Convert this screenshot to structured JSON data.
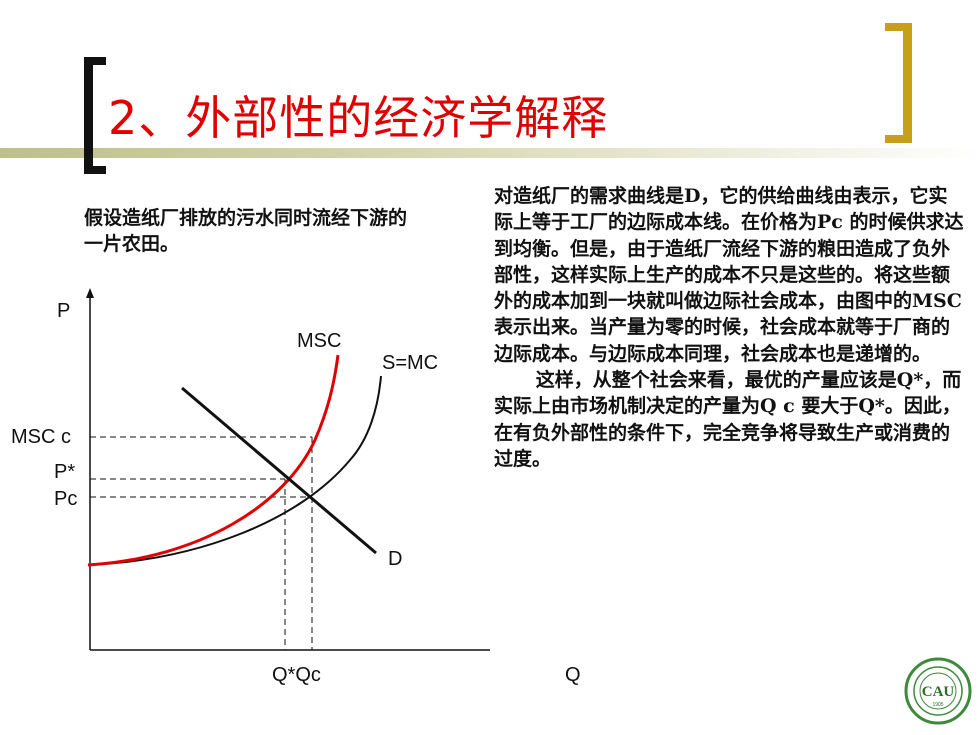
{
  "slide": {
    "title": "2、外部性的经济学解释",
    "assumption": "假设造纸厂排放的污水同时流经下游的一片农田。",
    "explanation": [
      "对造纸厂的需求曲线是D，它的供给曲线由表示，它实际上等于工厂的边际成本线。在价格为Pc 的时候供求达到均衡。但是，由于造纸厂流经下游的粮田造成了负外部性，这样实际上生产的成本不只是这些的。将这些额外的成本加到一块就叫做边际社会成本，由图中的MSC表示出来。当产量为零的时候，社会成本就等于厂商的边际成本。与边际成本同理，社会成本也是递增的。",
      "这样，从整个社会来看，最优的产量应该是Q*，而实际上由市场机制决定的产量为Q c 要大于Q*。因此，在有负外部性的条件下，完全竞争将导致生产或消费的过度。"
    ],
    "logo_text": "CAU",
    "logo_year": "1905"
  },
  "chart_data": {
    "type": "line",
    "title": "",
    "xlabel": "Q",
    "ylabel": "P",
    "series": [
      {
        "name": "MSC",
        "color": "#e00000"
      },
      {
        "name": "S=MC",
        "color": "#111111"
      },
      {
        "name": "D",
        "color": "#111111"
      }
    ],
    "y_marks": [
      "MSC c",
      "P*",
      "Pc"
    ],
    "x_marks": [
      "Q*",
      "Qc"
    ],
    "x_marks_label": "Q*Qc",
    "colors": {
      "title": "#e00000",
      "left_bracket": "#111111",
      "right_bracket": "#c8a018"
    }
  }
}
